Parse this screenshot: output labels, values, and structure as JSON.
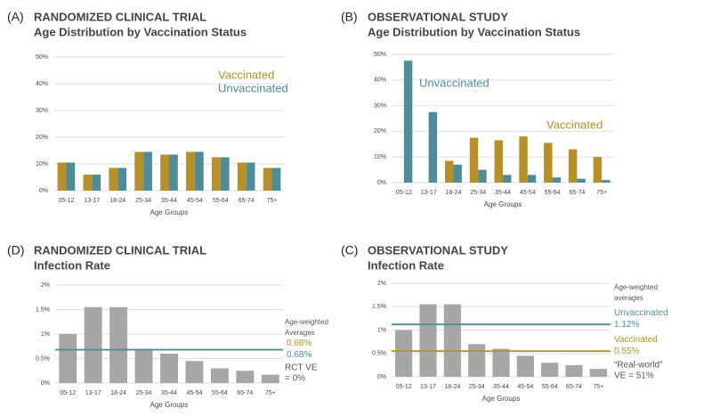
{
  "chart_data": [
    {
      "type": "bar",
      "panel": "(A)",
      "title": "RANDOMIZED CLINICAL TRIAL",
      "subtitle": "Age Distribution by Vaccination Status",
      "categories": [
        "05-12",
        "13-17",
        "18-24",
        "25-34",
        "35-44",
        "45-54",
        "55-64",
        "65-74",
        "75+"
      ],
      "series": [
        {
          "name": "Vaccinated",
          "color": "#b8902a",
          "values": [
            10.5,
            6,
            8.5,
            14.5,
            13.5,
            14.5,
            12.5,
            10.5,
            8.5
          ]
        },
        {
          "name": "Unvaccinated",
          "color": "#4f8c98",
          "values": [
            10.5,
            6,
            8.5,
            14.5,
            13.5,
            14.5,
            12.5,
            10.5,
            8.5
          ]
        }
      ],
      "xlabel": "Age Groups",
      "ylim": [
        0,
        50
      ],
      "yticks": [
        {
          "value": 0,
          "label": "0%"
        },
        {
          "value": 10,
          "label": "10%"
        },
        {
          "value": 20,
          "label": "20%"
        },
        {
          "value": 30,
          "label": "30%"
        },
        {
          "value": 40,
          "label": "40%"
        },
        {
          "value": 50,
          "label": "50%"
        }
      ],
      "grid": true
    },
    {
      "type": "bar",
      "panel": "(B)",
      "title": "OBSERVATIONAL STUDY",
      "subtitle": "Age Distribution by Vaccination Status",
      "categories": [
        "05-12",
        "13-17",
        "18-24",
        "25-34",
        "35-44",
        "45-54",
        "55-64",
        "65-74",
        "75+"
      ],
      "series": [
        {
          "name": "Vaccinated",
          "color": "#b8902a",
          "values": [
            0,
            0,
            8.5,
            17.5,
            16.5,
            18,
            15.5,
            13,
            10
          ]
        },
        {
          "name": "Unvaccinated",
          "color": "#4f8c98",
          "values": [
            47.5,
            27.5,
            7,
            5,
            3,
            3,
            2,
            1.5,
            1
          ]
        }
      ],
      "xlabel": "Age Groups",
      "ylim": [
        0,
        50
      ],
      "yticks": [
        {
          "value": 0,
          "label": "0%"
        },
        {
          "value": 10,
          "label": "10%"
        },
        {
          "value": 20,
          "label": "20%"
        },
        {
          "value": 30,
          "label": "30%"
        },
        {
          "value": 40,
          "label": "40%"
        },
        {
          "value": 50,
          "label": "50%"
        }
      ],
      "grid": true
    },
    {
      "type": "bar",
      "panel": "(D)",
      "title": "RANDOMIZED CLINICAL TRIAL",
      "subtitle": "Infection Rate",
      "categories": [
        "05-12",
        "13-17",
        "18-24",
        "25-34",
        "35-44",
        "45-54",
        "55-64",
        "65-74",
        "75+"
      ],
      "values": [
        1.0,
        1.55,
        1.55,
        0.7,
        0.6,
        0.45,
        0.3,
        0.25,
        0.17
      ],
      "color": "#a6a6a6",
      "ref_lines": [
        {
          "value": 0.68,
          "value_label": "0.68%",
          "color": "#b8902a"
        },
        {
          "value": 0.68,
          "value_label": "0.68%",
          "color": "#4f8c98"
        }
      ],
      "annotations": [
        {
          "lines": [
            "Age-weighted",
            "Averages"
          ],
          "color": "#555555"
        },
        {
          "lines": [
            "RCT VE",
            "= 0%"
          ],
          "color": "#555555"
        }
      ],
      "xlabel": "Age Groups",
      "ylim": [
        0,
        2
      ],
      "yticks": [
        {
          "value": 0,
          "label": "0%"
        },
        {
          "value": 0.5,
          "label": "0.5%"
        },
        {
          "value": 1,
          "label": "1%"
        },
        {
          "value": 1.5,
          "label": "1.5%"
        },
        {
          "value": 2,
          "label": "2%"
        }
      ],
      "grid": true
    },
    {
      "type": "bar",
      "panel": "(C)",
      "title": "OBSERVATIONAL STUDY",
      "subtitle": "Infection Rate",
      "categories": [
        "05-12",
        "13-17",
        "18-24",
        "25-34",
        "35-44",
        "45-54",
        "55-64",
        "65-74",
        "75+"
      ],
      "values": [
        1.0,
        1.55,
        1.55,
        0.7,
        0.6,
        0.45,
        0.3,
        0.25,
        0.17
      ],
      "color": "#a6a6a6",
      "ref_lines": [
        {
          "name": "Unvaccinated",
          "value": 1.12,
          "value_label": "1.12%",
          "color": "#4f8c98"
        },
        {
          "name": "Vaccinated",
          "value": 0.55,
          "value_label": "0.55%",
          "color": "#b8902a"
        }
      ],
      "annotations": [
        {
          "lines": [
            "Age-weighted",
            "averages"
          ],
          "color": "#555555"
        },
        {
          "lines": [
            "“Real-world”",
            "VE = 51%"
          ],
          "color": "#555555"
        }
      ],
      "xlabel": "Age Groups",
      "ylim": [
        0,
        2
      ],
      "yticks": [
        {
          "value": 0,
          "label": "0%"
        },
        {
          "value": 0.5,
          "label": "0.5%"
        },
        {
          "value": 1,
          "label": "1%"
        },
        {
          "value": 1.5,
          "label": "1.5%"
        },
        {
          "value": 2,
          "label": "2%"
        }
      ],
      "grid": true
    }
  ]
}
